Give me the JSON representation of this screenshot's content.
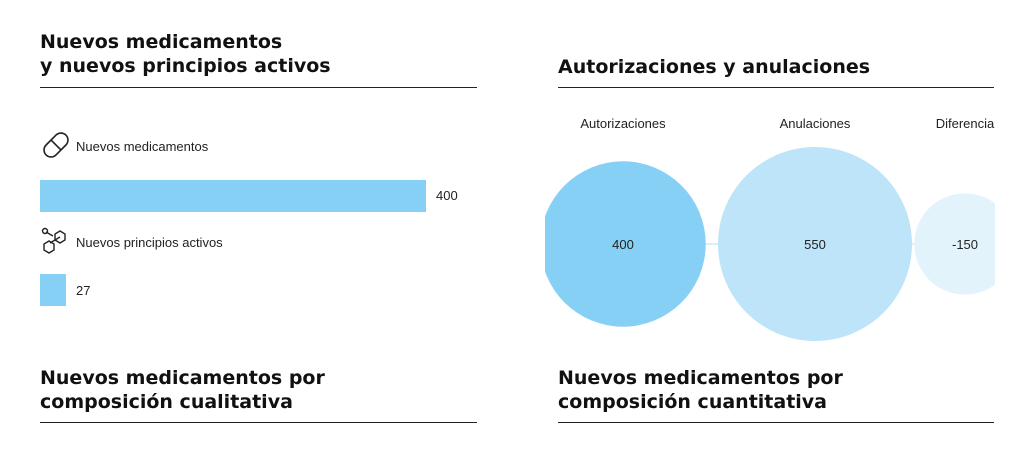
{
  "panels": {
    "new_medicines": {
      "title_line1": "Nuevos medicamentos",
      "title_line2": "y nuevos principios activos"
    },
    "authorizations": {
      "title": "Autorizaciones y anulaciones"
    },
    "qualitative": {
      "title_line1": "Nuevos medicamentos por",
      "title_line2": "composición cualitativa"
    },
    "quantitative": {
      "title_line1": "Nuevos medicamentos por",
      "title_line2": "composición cuantitativa"
    }
  },
  "icons": {
    "medicine": "pill-icon",
    "active_ingredient": "molecule-icon"
  },
  "colors": {
    "bar": "#86d0f5",
    "bubble_authorizations": "#86d0f5",
    "bubble_cancellations": "#bde4f9",
    "bubble_difference": "#e2f3fc"
  },
  "chart_data": [
    {
      "type": "bar",
      "orientation": "horizontal",
      "categories": [
        "Nuevos medicamentos",
        "Nuevos principios activos"
      ],
      "values": [
        400,
        27
      ],
      "value_labels": [
        "400",
        "27"
      ]
    },
    {
      "type": "bubble",
      "categories": [
        "Autorizaciones",
        "Anulaciones",
        "Diferencia"
      ],
      "values": [
        400,
        550,
        -150
      ],
      "value_labels": [
        "400",
        "550",
        "-150"
      ]
    }
  ]
}
